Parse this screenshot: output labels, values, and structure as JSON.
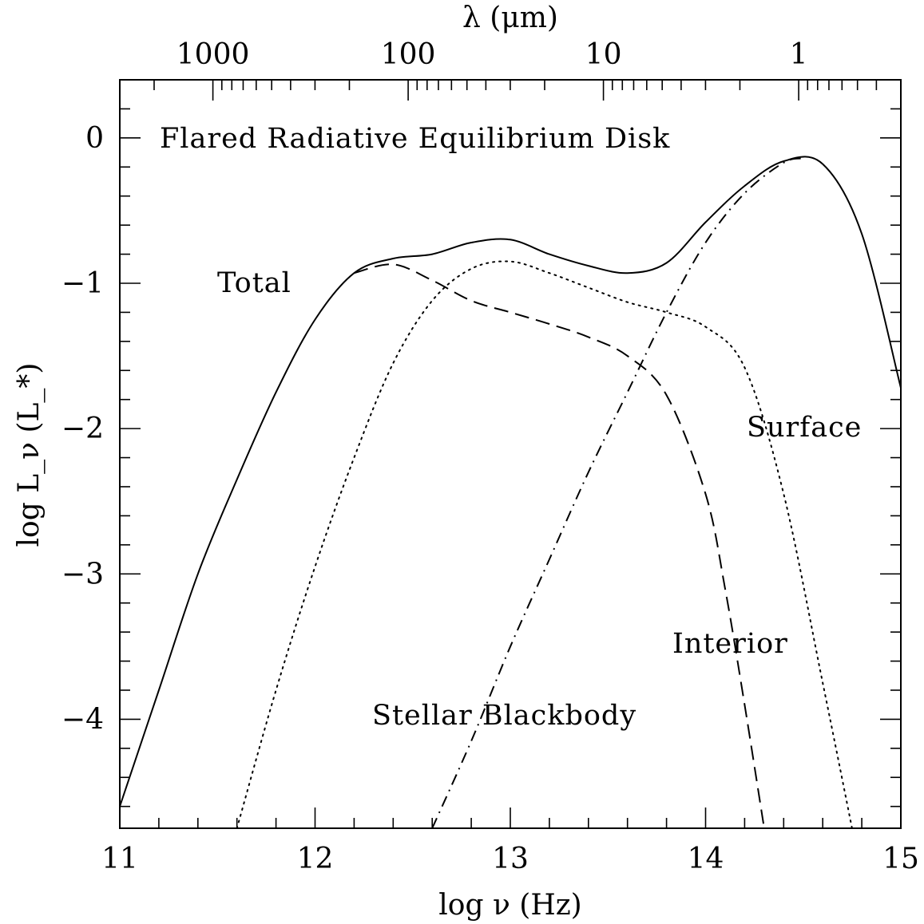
{
  "chart_data": {
    "type": "line",
    "title": "Flared Radiative Equilibrium Disk",
    "xlabel": "log ν (Hz)",
    "ylabel": "log L_ν (L_*)",
    "top_xlabel": "λ (μm)",
    "xlim": [
      11,
      15
    ],
    "ylim": [
      -4.75,
      0.4
    ],
    "x_ticks": [
      11,
      12,
      13,
      14,
      15
    ],
    "y_ticks": [
      0,
      -1,
      -2,
      -3,
      -4
    ],
    "x_tick_labels": [
      "11",
      "12",
      "13",
      "14",
      "15"
    ],
    "y_tick_labels": [
      "0",
      "−1",
      "−2",
      "−3",
      "−4"
    ],
    "top_tick_labels": [
      "1000",
      "100",
      "10",
      "1"
    ],
    "top_tick_values_um": [
      1000,
      100,
      10,
      1
    ],
    "grid": false,
    "series": [
      {
        "name": "Total",
        "style": "solid",
        "x": [
          11.0,
          11.2,
          11.4,
          11.6,
          11.8,
          12.0,
          12.2,
          12.4,
          12.6,
          12.8,
          13.0,
          13.2,
          13.4,
          13.6,
          13.8,
          14.0,
          14.2,
          14.4,
          14.6,
          14.8,
          15.0
        ],
        "y": [
          -4.6,
          -3.8,
          -3.0,
          -2.35,
          -1.75,
          -1.25,
          -0.93,
          -0.83,
          -0.8,
          -0.72,
          -0.7,
          -0.8,
          -0.88,
          -0.93,
          -0.86,
          -0.58,
          -0.33,
          -0.16,
          -0.18,
          -0.66,
          -1.72
        ]
      },
      {
        "name": "Interior",
        "style": "dashed",
        "x": [
          12.2,
          12.4,
          12.6,
          12.8,
          13.0,
          13.2,
          13.4,
          13.6,
          13.8,
          14.0,
          14.1,
          14.2,
          14.3
        ],
        "y": [
          -0.93,
          -0.87,
          -0.98,
          -1.12,
          -1.2,
          -1.28,
          -1.37,
          -1.5,
          -1.77,
          -2.45,
          -3.1,
          -3.9,
          -4.75
        ]
      },
      {
        "name": "Surface",
        "style": "dotted",
        "x": [
          11.6,
          11.8,
          12.0,
          12.2,
          12.4,
          12.6,
          12.8,
          13.0,
          13.2,
          13.4,
          13.6,
          13.8,
          14.0,
          14.2,
          14.4,
          14.6,
          14.75
        ],
        "y": [
          -4.75,
          -3.8,
          -2.95,
          -2.2,
          -1.55,
          -1.12,
          -0.9,
          -0.85,
          -0.93,
          -1.03,
          -1.13,
          -1.2,
          -1.3,
          -1.58,
          -2.45,
          -3.75,
          -4.75
        ]
      },
      {
        "name": "Stellar Blackbody",
        "style": "dashdot",
        "x": [
          12.6,
          12.8,
          13.0,
          13.2,
          13.4,
          13.6,
          13.8,
          14.0,
          14.2,
          14.4,
          14.5
        ],
        "y": [
          -4.75,
          -4.15,
          -3.5,
          -2.9,
          -2.3,
          -1.75,
          -1.2,
          -0.72,
          -0.38,
          -0.17,
          -0.14
        ]
      }
    ],
    "annotations": [
      "Total",
      "Interior",
      "Surface",
      "Stellar Blackbody"
    ]
  }
}
